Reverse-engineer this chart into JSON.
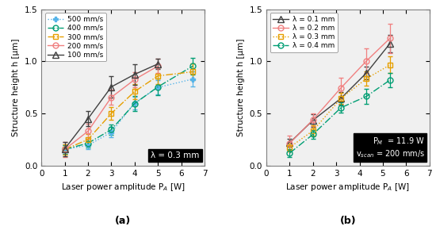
{
  "panel_a": {
    "subfig_label": "(a)",
    "xlabel": "Laser power amplitude P$_A$ [W]",
    "ylabel": "Structure height h [μm]",
    "annotation": "λ = 0.3 mm",
    "xlim": [
      0,
      7
    ],
    "ylim": [
      0,
      1.5
    ],
    "xticks": [
      0,
      1,
      2,
      3,
      4,
      5,
      6,
      7
    ],
    "yticks": [
      0.0,
      0.5,
      1.0,
      1.5
    ],
    "series": [
      {
        "label": "500 mm/s",
        "color": "#56b4e9",
        "linestyle": "dotted",
        "marker": "P",
        "markersize": 5,
        "markerfilled": true,
        "x": [
          1.0,
          2.0,
          3.0,
          4.0,
          5.0,
          6.5
        ],
        "y": [
          0.155,
          0.195,
          0.32,
          0.6,
          0.75,
          0.83
        ],
        "yerr": [
          0.04,
          0.04,
          0.05,
          0.06,
          0.07,
          0.07
        ]
      },
      {
        "label": "400 mm/s",
        "color": "#009E73",
        "linestyle": "dashdot",
        "marker": "o",
        "markersize": 5,
        "markerfilled": false,
        "x": [
          1.0,
          2.0,
          3.0,
          4.0,
          5.0,
          6.5
        ],
        "y": [
          0.155,
          0.215,
          0.345,
          0.595,
          0.755,
          0.955
        ],
        "yerr": [
          0.04,
          0.04,
          0.05,
          0.07,
          0.08,
          0.08
        ]
      },
      {
        "label": "300 mm/s",
        "color": "#E69F00",
        "linestyle": "dashdot",
        "marker": "s",
        "markersize": 5,
        "markerfilled": false,
        "x": [
          1.0,
          2.0,
          3.0,
          4.0,
          5.0,
          6.5
        ],
        "y": [
          0.155,
          0.25,
          0.5,
          0.71,
          0.86,
          0.9
        ],
        "yerr": [
          0.05,
          0.05,
          0.06,
          0.07,
          0.08,
          0.08
        ]
      },
      {
        "label": "200 mm/s",
        "color": "#F08080",
        "linestyle": "solid",
        "marker": "o",
        "markersize": 5,
        "markerfilled": false,
        "x": [
          1.0,
          2.0,
          3.0,
          4.0,
          5.0
        ],
        "y": [
          0.155,
          0.33,
          0.655,
          0.825,
          0.955
        ],
        "yerr": [
          0.07,
          0.07,
          0.07,
          0.07,
          0.07
        ]
      },
      {
        "label": "100 mm/s",
        "color": "#404040",
        "linestyle": "solid",
        "marker": "^",
        "markersize": 6,
        "markerfilled": false,
        "x": [
          1.0,
          2.0,
          3.0,
          4.0,
          5.0
        ],
        "y": [
          0.16,
          0.45,
          0.755,
          0.875,
          0.975
        ],
        "yerr": [
          0.07,
          0.07,
          0.1,
          0.1,
          0.05
        ]
      }
    ]
  },
  "panel_b": {
    "subfig_label": "(b)",
    "xlabel": "Laser power amplitude P$_A$ [W]",
    "ylabel": "Structure height h [μm]",
    "annotation_line1": "P$_M$  = 11.9 W",
    "annotation_line2": "v$_{scan}$ = 200 mm/s",
    "xlim": [
      0,
      7
    ],
    "ylim": [
      0,
      1.5
    ],
    "xticks": [
      0,
      1,
      2,
      3,
      4,
      5,
      6,
      7
    ],
    "yticks": [
      0.0,
      0.5,
      1.0,
      1.5
    ],
    "series": [
      {
        "label": "λ = 0.1 mm",
        "color": "#404040",
        "linestyle": "solid",
        "marker": "^",
        "markersize": 6,
        "markerfilled": false,
        "x": [
          1.0,
          2.0,
          3.2,
          4.3,
          5.3
        ],
        "y": [
          0.22,
          0.435,
          0.645,
          0.89,
          1.17
        ],
        "yerr": [
          0.04,
          0.06,
          0.06,
          0.06,
          0.08
        ]
      },
      {
        "label": "λ = 0.2 mm",
        "color": "#F08080",
        "linestyle": "solid",
        "marker": "o",
        "markersize": 5,
        "markerfilled": false,
        "x": [
          1.0,
          2.0,
          3.2,
          4.3,
          5.3
        ],
        "y": [
          0.215,
          0.44,
          0.745,
          1.005,
          1.22
        ],
        "yerr": [
          0.07,
          0.06,
          0.1,
          0.12,
          0.14
        ]
      },
      {
        "label": "λ = 0.3 mm",
        "color": "#E69F00",
        "linestyle": "dotted",
        "marker": "s",
        "markersize": 5,
        "markerfilled": false,
        "x": [
          1.0,
          2.0,
          3.2,
          4.3,
          5.3
        ],
        "y": [
          0.175,
          0.335,
          0.645,
          0.835,
          0.965
        ],
        "yerr": [
          0.04,
          0.05,
          0.05,
          0.07,
          0.08
        ]
      },
      {
        "label": "λ = 0.4 mm",
        "color": "#009E73",
        "linestyle": "dashdot",
        "marker": "o",
        "markersize": 5,
        "markerfilled": false,
        "x": [
          1.0,
          2.0,
          3.2,
          4.3,
          5.3
        ],
        "y": [
          0.12,
          0.3,
          0.555,
          0.665,
          0.82
        ],
        "yerr": [
          0.04,
          0.04,
          0.05,
          0.07,
          0.07
        ]
      }
    ]
  }
}
